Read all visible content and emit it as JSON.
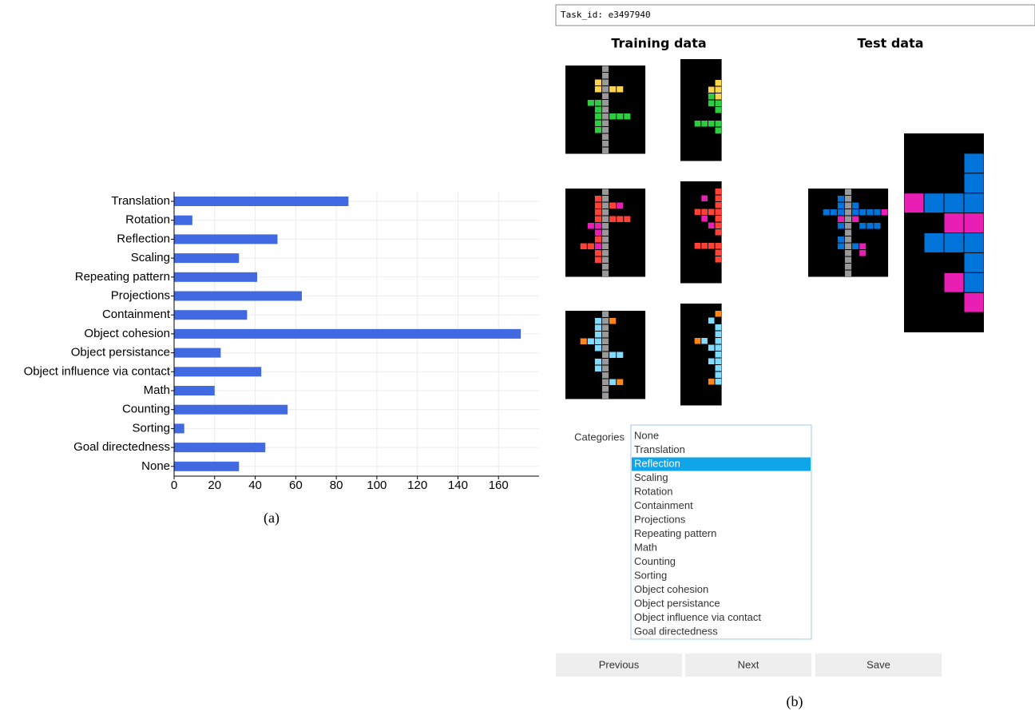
{
  "chart_data": {
    "type": "bar",
    "orientation": "horizontal",
    "categories": [
      "Translation",
      "Rotation",
      "Reflection",
      "Scaling",
      "Repeating pattern",
      "Projections",
      "Containment",
      "Object cohesion",
      "Object persistance",
      "Object influence via contact",
      "Math",
      "Counting",
      "Sorting",
      "Goal directedness",
      "None"
    ],
    "values": [
      86,
      9,
      51,
      32,
      41,
      63,
      36,
      171,
      23,
      43,
      20,
      56,
      5,
      45,
      32
    ],
    "color": "#4169e1",
    "xlim": [
      0,
      180
    ],
    "xticks": [
      0,
      20,
      40,
      60,
      80,
      100,
      120,
      140,
      160
    ],
    "grid": true,
    "caption": "(a)"
  },
  "ui": {
    "task_id": "Task_id: e3497940",
    "training_title": "Training data",
    "test_title": "Test data",
    "categories_label": "Categories",
    "categories": [
      "None",
      "Translation",
      "Reflection",
      "Scaling",
      "Rotation",
      "Containment",
      "Projections",
      "Repeating pattern",
      "Math",
      "Counting",
      "Sorting",
      "Object cohesion",
      "Object persistance",
      "Object influence via contact",
      "Goal directedness"
    ],
    "selected": 2,
    "buttons": [
      "Previous",
      "Next",
      "Save"
    ],
    "caption": "(b)"
  }
}
